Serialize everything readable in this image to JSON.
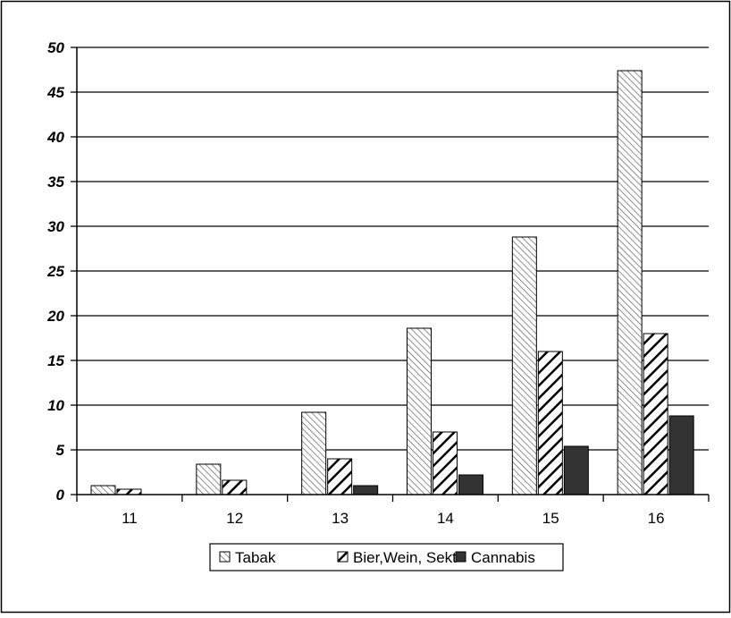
{
  "chart_data": {
    "type": "bar",
    "categories": [
      "11",
      "12",
      "13",
      "14",
      "15",
      "16"
    ],
    "series": [
      {
        "name": "Tabak",
        "values": [
          1.0,
          3.4,
          9.2,
          18.6,
          28.8,
          47.4
        ],
        "pattern": "hatch-light"
      },
      {
        "name": "Bier,Wein, Sekt",
        "values": [
          0.6,
          1.6,
          4.0,
          7.0,
          16.0,
          18.0
        ],
        "pattern": "hatch-bold"
      },
      {
        "name": "Cannabis",
        "values": [
          0.0,
          0.0,
          1.0,
          2.2,
          5.4,
          8.8
        ],
        "pattern": "solid"
      }
    ],
    "title": "",
    "xlabel": "",
    "ylabel": "",
    "ylim": [
      0,
      50
    ],
    "yticks": [
      "0",
      "5",
      "10",
      "15",
      "20",
      "25",
      "30",
      "35",
      "40",
      "45",
      "50"
    ],
    "grid": true,
    "legend": "bottom",
    "colors": {
      "bar_dark": "#333333",
      "stroke": "#000000",
      "background": "#ffffff"
    }
  }
}
